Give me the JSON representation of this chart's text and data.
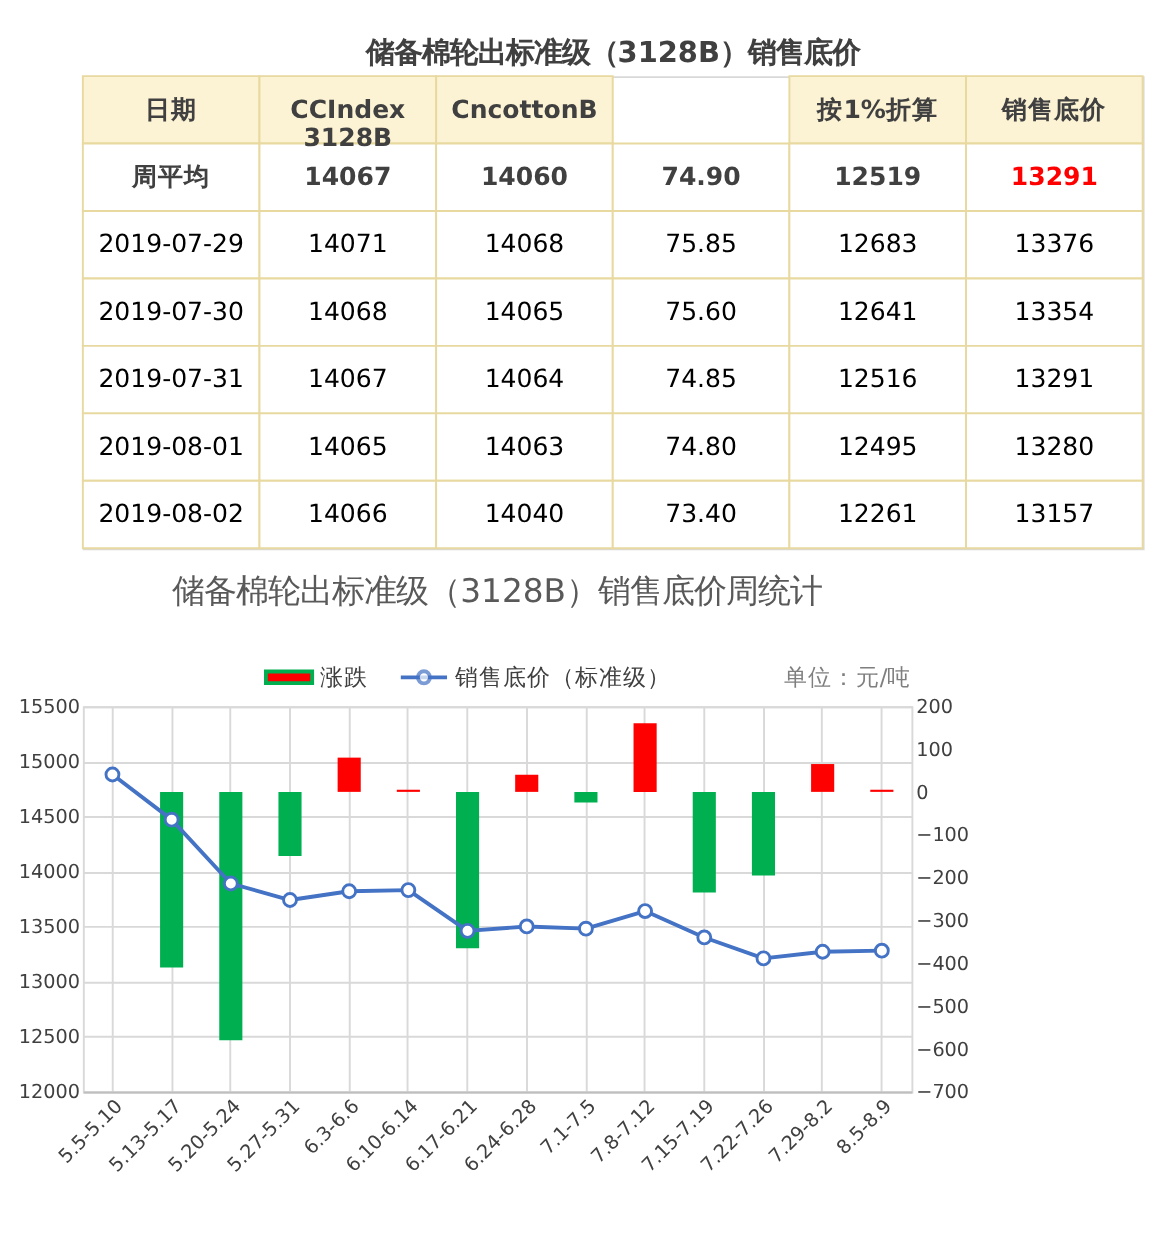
{
  "chart_data": [
    {
      "type": "other",
      "title": "储备棉轮出标准级（3128B）销售底价",
      "categories": [
        "日期",
        "CCIndex\n3128B",
        "CncottonB",
        null,
        "按1%折算",
        "销售底价"
      ],
      "y_categories": [
        "周平均",
        "2019-07-29",
        "2019-07-30",
        "2019-07-31",
        "2019-08-01",
        "2019-08-02"
      ],
      "cell_labels": [
        [
          "14067",
          "14060",
          "74.90",
          "12519",
          "13291"
        ],
        [
          "14071",
          "14068",
          "75.85",
          "12683",
          "13376"
        ],
        [
          "14068",
          "14065",
          "75.60",
          "12641",
          "13354"
        ],
        [
          "14067",
          "14064",
          "74.85",
          "12516",
          "13291"
        ],
        [
          "14065",
          "14063",
          "74.80",
          "12495",
          "13280"
        ],
        [
          "14066",
          "14040",
          "73.40",
          "12261",
          "13157"
        ]
      ],
      "colors": [
        [
          "#404040",
          "#404040",
          "#404040",
          "#404040",
          "#ff0000"
        ],
        [
          "#000000",
          "#000000",
          "#000000",
          "#000000",
          "#000000"
        ],
        [
          "#000000",
          "#000000",
          "#000000",
          "#000000",
          "#000000"
        ],
        [
          "#000000",
          "#000000",
          "#000000",
          "#000000",
          "#000000"
        ],
        [
          "#000000",
          "#000000",
          "#000000",
          "#000000",
          "#000000"
        ],
        [
          "#000000",
          "#000000",
          "#000000",
          "#000000",
          "#000000"
        ]
      ]
    },
    {
      "type": "bar",
      "title": "储备棉轮出标准级（3128B）销售底价周统计",
      "categories": [
        "5.5-5.10",
        "5.13-5.17",
        "5.20-5.24",
        "5.27-5.31",
        "6.3-6.6",
        "6.10-6.14",
        "6.17-6.21",
        "6.24-6.28",
        "7.1-7.5",
        "7.8-7.12",
        "7.15-7.19",
        "7.22-7.26",
        "7.29-8.2",
        "8.5-8.9"
      ],
      "series": [
        {
          "name": "涨跌",
          "type": "bar",
          "axis": "y2",
          "color": "#00b050",
          "values": [
            null,
            -410,
            -580,
            -150,
            80,
            5,
            -365,
            40,
            -25,
            160,
            -235,
            -195,
            65,
            5
          ],
          "colors": [
            "#00b050",
            "#00b050",
            "#00b050",
            "#00b050",
            "#ff0000",
            "#ff0000",
            "#00b050",
            "#ff0000",
            "#00b050",
            "#ff0000",
            "#00b050",
            "#00b050",
            "#ff0000",
            "#ff0000"
          ]
        },
        {
          "name": "销售底价（标准级）",
          "type": "line",
          "color": "#4472c4",
          "values": [
            14880,
            14470,
            13890,
            13740,
            13820,
            13830,
            13460,
            13500,
            13480,
            13640,
            13400,
            13210,
            13270,
            13280
          ]
        }
      ],
      "ylim": [
        12000,
        15500
      ],
      "yticks": [
        12000,
        12500,
        13000,
        13500,
        14000,
        14500,
        15000,
        15500
      ],
      "y2lim": [
        -700,
        200
      ],
      "y2ticks": [
        -700,
        -600,
        -500,
        -400,
        -300,
        -200,
        -100,
        0,
        100,
        200
      ],
      "annotations": [
        "单位：元/吨"
      ],
      "grid": true,
      "legend": "top",
      "marker": "circle",
      "line_style": "solid"
    }
  ]
}
